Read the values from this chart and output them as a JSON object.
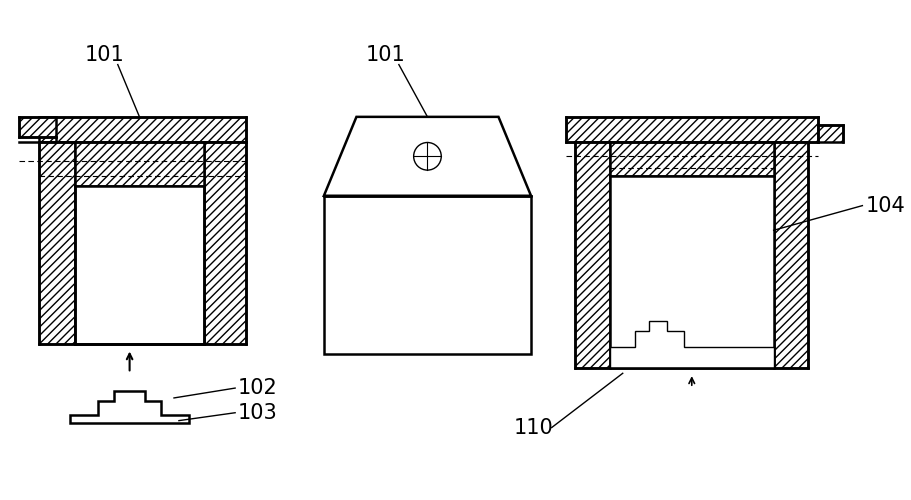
{
  "bg_color": "#ffffff",
  "line_color": "#000000",
  "labels": {
    "101_left": "101",
    "101_mid": "101",
    "102": "102",
    "103": "103",
    "104": "104",
    "110": "110"
  },
  "label_fontsize": 15,
  "figsize": [
    9.12,
    5.0
  ],
  "dpi": 100
}
